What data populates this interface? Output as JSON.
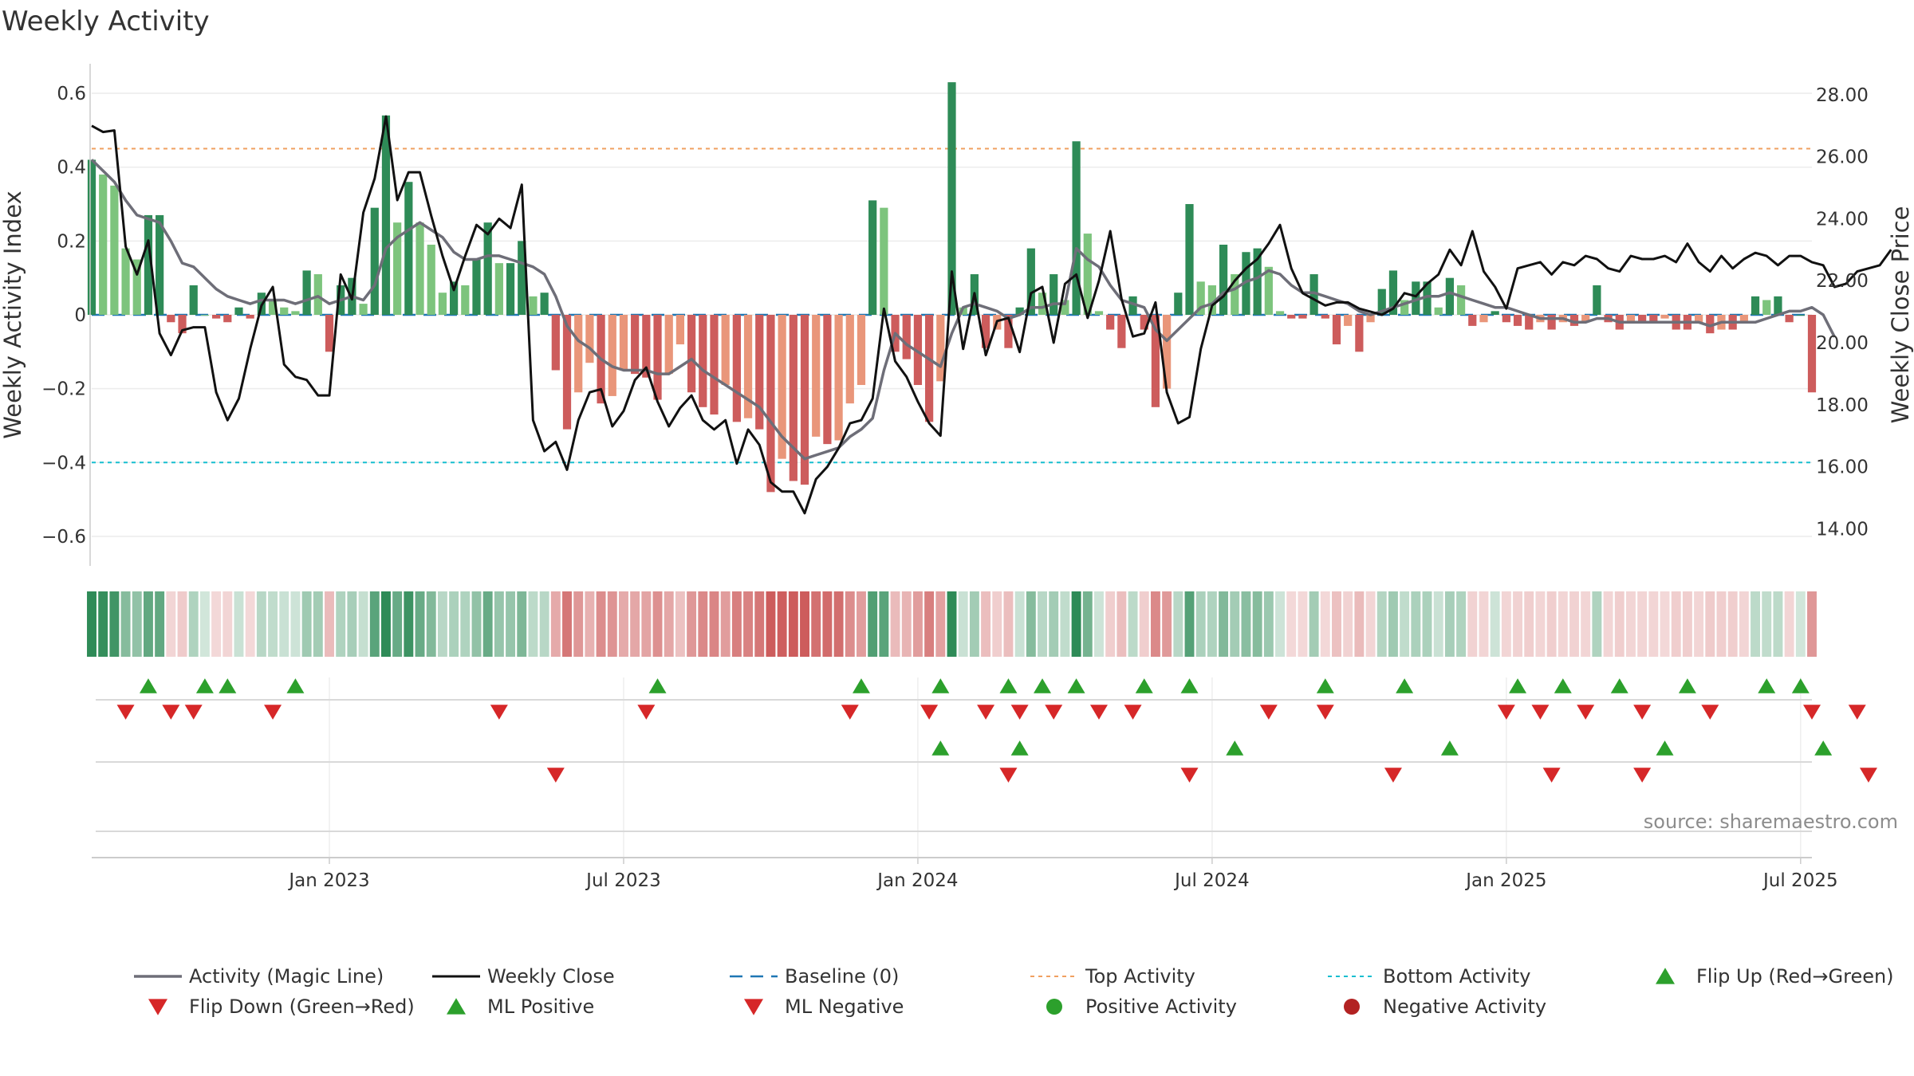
{
  "chart_data": {
    "type": "bar",
    "title": "Weekly Activity",
    "ylabel_left": "Weekly Activity Index",
    "ylabel_right": "Weekly Close Price",
    "ylim_left": [
      -0.68,
      0.68
    ],
    "ylim_right": [
      12.8,
      29.0
    ],
    "yticks_left": [
      {
        "v": 0.6,
        "label": "0.6"
      },
      {
        "v": 0.4,
        "label": "0.4"
      },
      {
        "v": 0.2,
        "label": "0.2"
      },
      {
        "v": 0,
        "label": "0"
      },
      {
        "v": -0.2,
        "label": "−0.2"
      },
      {
        "v": -0.4,
        "label": "−0.4"
      },
      {
        "v": -0.6,
        "label": "−0.6"
      }
    ],
    "yticks_right": [
      {
        "v": 28,
        "label": "28.00"
      },
      {
        "v": 26,
        "label": "26.00"
      },
      {
        "v": 24,
        "label": "24.00"
      },
      {
        "v": 22,
        "label": "22.00"
      },
      {
        "v": 20,
        "label": "20.00"
      },
      {
        "v": 18,
        "label": "18.00"
      },
      {
        "v": 16,
        "label": "16.00"
      },
      {
        "v": 14,
        "label": "14.00"
      }
    ],
    "xticks": [
      {
        "week": 21,
        "label": "Jan 2023"
      },
      {
        "week": 47,
        "label": "Jul 2023"
      },
      {
        "week": 73,
        "label": "Jan 2024"
      },
      {
        "week": 99,
        "label": "Jul 2024"
      },
      {
        "week": 125,
        "label": "Jan 2025"
      },
      {
        "week": 151,
        "label": "Jul 2025"
      }
    ],
    "top_activity": 0.45,
    "bottom_activity": -0.4,
    "activity": [
      0.42,
      0.38,
      0.35,
      0.18,
      0.15,
      0.27,
      0.27,
      -0.02,
      -0.05,
      0.08,
      0.0,
      -0.01,
      -0.02,
      0.02,
      -0.01,
      0.06,
      0.04,
      0.02,
      0.01,
      0.12,
      0.11,
      -0.1,
      0.08,
      0.1,
      0.03,
      0.29,
      0.54,
      0.25,
      0.36,
      0.25,
      0.19,
      0.06,
      0.09,
      0.08,
      0.15,
      0.25,
      0.14,
      0.14,
      0.2,
      0.05,
      0.06,
      -0.15,
      -0.31,
      -0.21,
      -0.13,
      -0.24,
      -0.22,
      -0.15,
      -0.16,
      -0.17,
      -0.23,
      -0.16,
      -0.08,
      -0.21,
      -0.25,
      -0.27,
      -0.19,
      -0.29,
      -0.28,
      -0.31,
      -0.48,
      -0.39,
      -0.45,
      -0.46,
      -0.33,
      -0.35,
      -0.34,
      -0.24,
      -0.19,
      0.31,
      0.29,
      -0.1,
      -0.12,
      -0.19,
      -0.29,
      -0.18,
      0.63,
      0.02,
      0.11,
      -0.09,
      -0.04,
      -0.09,
      0.02,
      0.18,
      0.06,
      0.11,
      0.04,
      0.47,
      0.22,
      0.01,
      -0.04,
      -0.09,
      0.05,
      -0.04,
      -0.25,
      -0.2,
      0.06,
      0.3,
      0.09,
      0.08,
      0.19,
      0.11,
      0.17,
      0.18,
      0.13,
      0.01,
      -0.01,
      -0.01,
      0.11,
      -0.01,
      -0.08,
      -0.03,
      -0.1,
      -0.02,
      0.07,
      0.12,
      0.04,
      0.09,
      0.09,
      0.02,
      0.1,
      0.08,
      -0.03,
      -0.02,
      0.01,
      -0.02,
      -0.03,
      -0.04,
      -0.02,
      -0.04,
      -0.02,
      -0.03,
      -0.02,
      0.08,
      -0.02,
      -0.04,
      -0.02,
      -0.02,
      -0.02,
      -0.01,
      -0.04,
      -0.04,
      -0.02,
      -0.05,
      -0.04,
      -0.04,
      -0.02,
      0.05,
      0.04,
      0.05,
      -0.02,
      0.0,
      -0.21
    ],
    "magic_line": [
      0.42,
      0.39,
      0.36,
      0.31,
      0.27,
      0.26,
      0.25,
      0.2,
      0.14,
      0.13,
      0.1,
      0.07,
      0.05,
      0.04,
      0.03,
      0.04,
      0.04,
      0.04,
      0.03,
      0.04,
      0.05,
      0.03,
      0.04,
      0.05,
      0.04,
      0.08,
      0.18,
      0.21,
      0.23,
      0.25,
      0.23,
      0.21,
      0.17,
      0.15,
      0.15,
      0.16,
      0.16,
      0.15,
      0.14,
      0.13,
      0.11,
      0.05,
      -0.03,
      -0.07,
      -0.09,
      -0.12,
      -0.14,
      -0.15,
      -0.15,
      -0.15,
      -0.16,
      -0.16,
      -0.14,
      -0.12,
      -0.15,
      -0.17,
      -0.19,
      -0.21,
      -0.23,
      -0.25,
      -0.29,
      -0.33,
      -0.36,
      -0.39,
      -0.38,
      -0.37,
      -0.36,
      -0.33,
      -0.31,
      -0.28,
      -0.15,
      -0.05,
      -0.08,
      -0.1,
      -0.12,
      -0.14,
      -0.05,
      0.02,
      0.03,
      0.02,
      0.01,
      -0.01,
      0.0,
      0.02,
      0.02,
      0.03,
      0.03,
      0.18,
      0.15,
      0.13,
      0.08,
      0.04,
      0.03,
      0.02,
      -0.04,
      -0.07,
      -0.04,
      -0.01,
      0.02,
      0.03,
      0.06,
      0.07,
      0.09,
      0.1,
      0.12,
      0.11,
      0.08,
      0.06,
      0.06,
      0.05,
      0.04,
      0.03,
      0.01,
      0.0,
      0.01,
      0.02,
      0.03,
      0.04,
      0.05,
      0.05,
      0.06,
      0.05,
      0.04,
      0.03,
      0.02,
      0.02,
      0.01,
      0.0,
      -0.01,
      -0.01,
      -0.01,
      -0.02,
      -0.02,
      -0.01,
      -0.01,
      -0.02,
      -0.02,
      -0.02,
      -0.02,
      -0.02,
      -0.02,
      -0.02,
      -0.02,
      -0.03,
      -0.02,
      -0.02,
      -0.02,
      -0.02,
      -0.01,
      0.0,
      0.01,
      0.01,
      0.02,
      0.0,
      -0.06
    ],
    "weekly_close": [
      27.0,
      26.8,
      26.85,
      23.1,
      22.2,
      23.3,
      20.3,
      19.6,
      20.4,
      20.5,
      20.5,
      18.4,
      17.5,
      18.2,
      19.8,
      21.2,
      21.8,
      19.3,
      18.9,
      18.8,
      18.3,
      18.3,
      22.2,
      21.4,
      24.2,
      25.3,
      27.3,
      24.6,
      25.5,
      25.5,
      24.1,
      22.8,
      21.7,
      22.8,
      23.8,
      23.5,
      24.0,
      23.7,
      25.1,
      17.5,
      16.5,
      16.8,
      15.9,
      17.5,
      18.4,
      18.5,
      17.3,
      17.8,
      18.8,
      19.2,
      18.1,
      17.3,
      17.9,
      18.3,
      17.5,
      17.2,
      17.5,
      16.1,
      17.2,
      16.7,
      15.5,
      15.2,
      15.2,
      14.5,
      15.6,
      16.0,
      16.6,
      17.4,
      17.5,
      18.2,
      21.1,
      19.4,
      18.9,
      18.1,
      17.4,
      17.0,
      22.3,
      19.8,
      21.6,
      19.6,
      20.7,
      20.8,
      19.7,
      21.6,
      21.8,
      20.0,
      21.9,
      22.2,
      20.8,
      22.0,
      23.6,
      21.4,
      20.2,
      20.3,
      21.3,
      18.4,
      17.4,
      17.6,
      19.8,
      21.2,
      21.5,
      22.0,
      22.4,
      22.7,
      23.2,
      23.8,
      22.4,
      21.6,
      21.4,
      21.2,
      21.3,
      21.3,
      21.1,
      21.0,
      20.9,
      21.1,
      21.6,
      21.5,
      21.9,
      22.2,
      23.0,
      22.5,
      23.6,
      22.3,
      21.8,
      21.1,
      22.4,
      22.5,
      22.6,
      22.2,
      22.6,
      22.5,
      22.8,
      22.7,
      22.4,
      22.3,
      22.8,
      22.7,
      22.7,
      22.8,
      22.6,
      23.2,
      22.6,
      22.3,
      22.8,
      22.4,
      22.7,
      22.9,
      22.8,
      22.5,
      22.8,
      22.8,
      22.6,
      22.5,
      21.8,
      21.9,
      22.3,
      22.4,
      22.5,
      23.0
    ],
    "flip_up": [
      5,
      10,
      12,
      18,
      50,
      68,
      75,
      81,
      84,
      87,
      93,
      97,
      109,
      116,
      126,
      130,
      135,
      141,
      148,
      151
    ],
    "flip_down": [
      3,
      7,
      9,
      16,
      36,
      49,
      67,
      74,
      79,
      82,
      85,
      89,
      92,
      104,
      109,
      125,
      128,
      132,
      137,
      143,
      152,
      156
    ],
    "ml_positive": [
      75,
      82,
      101,
      120,
      139,
      153
    ],
    "ml_negative": [
      41,
      81,
      97,
      115,
      129,
      137,
      157
    ],
    "legend": [
      {
        "key": "magic",
        "label": "Activity (Magic Line)"
      },
      {
        "key": "close",
        "label": "Weekly Close"
      },
      {
        "key": "baseline",
        "label": "Baseline (0)"
      },
      {
        "key": "top",
        "label": "Top Activity"
      },
      {
        "key": "bottom",
        "label": "Bottom Activity"
      },
      {
        "key": "flipup",
        "label": "Flip Up (Red→Green)"
      },
      {
        "key": "flipdown",
        "label": "Flip Down (Green→Red)"
      },
      {
        "key": "mlpos",
        "label": "ML Positive"
      },
      {
        "key": "mlneg",
        "label": "ML Negative"
      },
      {
        "key": "posact",
        "label": "Positive Activity"
      },
      {
        "key": "negact",
        "label": "Negative Activity"
      }
    ],
    "source": "source: sharemaestro.com"
  },
  "colors": {
    "pos_strong": "#2e8b57",
    "pos_light": "#7dc47d",
    "neg_strong": "#cd5c5c",
    "neg_light": "#e9967a",
    "magic_line": "#6e6e78",
    "weekly_close": "#111111",
    "baseline": "#1f77b4",
    "top_activity": "#f0a060",
    "bottom_activity": "#17becf",
    "flip_up": "#2ca02c",
    "flip_down": "#d62728",
    "positive_dot": "#2ca02c",
    "negative_dot": "#b22222"
  }
}
